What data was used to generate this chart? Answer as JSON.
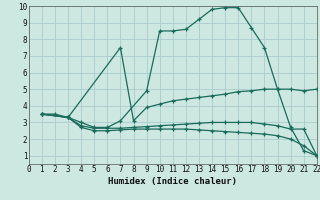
{
  "bg_color": "#cce8e0",
  "grid_color": "#aacccc",
  "line_color": "#1a6b5a",
  "xlabel": "Humidex (Indice chaleur)",
  "xlim": [
    0,
    22
  ],
  "ylim": [
    0.5,
    10
  ],
  "xticks": [
    0,
    1,
    2,
    3,
    4,
    5,
    6,
    7,
    8,
    9,
    10,
    11,
    12,
    13,
    14,
    15,
    16,
    17,
    18,
    19,
    20,
    21,
    22
  ],
  "yticks": [
    1,
    2,
    3,
    4,
    5,
    6,
    7,
    8,
    9,
    10
  ],
  "line1_x": [
    1,
    2,
    3,
    4,
    5,
    6,
    7,
    9,
    10,
    11,
    12,
    13,
    14,
    15,
    16,
    17,
    18,
    19,
    20,
    21,
    22
  ],
  "line1_y": [
    3.5,
    3.5,
    3.3,
    3.0,
    2.7,
    2.7,
    3.1,
    4.9,
    8.5,
    8.5,
    8.6,
    9.2,
    9.8,
    9.9,
    9.9,
    8.7,
    7.5,
    5.0,
    2.7,
    1.3,
    1.0
  ],
  "line2_x": [
    1,
    3,
    7,
    8,
    9,
    10,
    11,
    12,
    13,
    14,
    15,
    16,
    17,
    18,
    19,
    20,
    21,
    22
  ],
  "line2_y": [
    3.5,
    3.3,
    7.5,
    3.1,
    3.9,
    4.1,
    4.3,
    4.4,
    4.5,
    4.6,
    4.7,
    4.85,
    4.9,
    5.0,
    5.0,
    5.0,
    4.9,
    5.0
  ],
  "line3_x": [
    1,
    3,
    4,
    5,
    6,
    7,
    8,
    9,
    10,
    11,
    12,
    13,
    14,
    15,
    16,
    17,
    18,
    19,
    20,
    21,
    22
  ],
  "line3_y": [
    3.5,
    3.3,
    2.8,
    2.65,
    2.65,
    2.65,
    2.7,
    2.75,
    2.8,
    2.85,
    2.9,
    2.95,
    3.0,
    3.0,
    3.0,
    3.0,
    2.9,
    2.8,
    2.6,
    2.6,
    1.0
  ],
  "line4_x": [
    1,
    3,
    4,
    5,
    6,
    7,
    8,
    9,
    10,
    11,
    12,
    13,
    14,
    15,
    16,
    17,
    18,
    19,
    20,
    21,
    22
  ],
  "line4_y": [
    3.5,
    3.3,
    2.7,
    2.5,
    2.5,
    2.55,
    2.6,
    2.6,
    2.6,
    2.6,
    2.6,
    2.55,
    2.5,
    2.45,
    2.4,
    2.35,
    2.3,
    2.2,
    2.0,
    1.6,
    1.0
  ]
}
